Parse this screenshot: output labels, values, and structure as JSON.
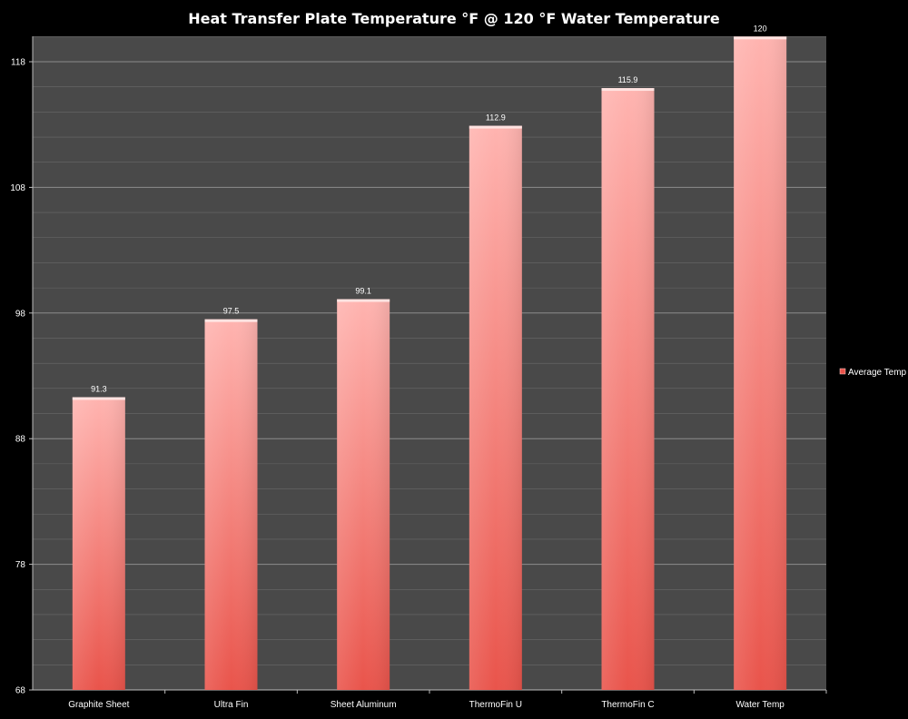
{
  "chart_data": {
    "type": "bar",
    "title": "Heat Transfer Plate Temperature °F @ 120 °F Water Temperature",
    "xlabel": "",
    "ylabel": "",
    "categories": [
      "Graphite Sheet",
      "Ultra Fin",
      "Sheet Aluminum",
      "ThermoFin U",
      "ThermoFin C",
      "Water Temp"
    ],
    "series": [
      {
        "name": "Average Temp",
        "values": [
          91.3,
          97.5,
          99.1,
          112.9,
          115.9,
          120
        ],
        "value_labels": [
          "91.3",
          "97.5",
          "99.1",
          "112.9",
          "115.9",
          "120"
        ]
      }
    ],
    "ylim": [
      68,
      120
    ],
    "yticks": [
      68,
      78,
      88,
      98,
      108,
      118
    ],
    "ytick_labels": [
      "68",
      "78",
      "88",
      "98",
      "108",
      "118"
    ],
    "minor_grid_step": 2,
    "grid": true,
    "legend_position": "right",
    "colors": {
      "background": "#000000",
      "plot_area": "#494949",
      "bar_top": "#ffb4b0",
      "bar_bottom": "#e9544b",
      "grid": "#6a6a6a",
      "text": "#ffffff"
    }
  }
}
